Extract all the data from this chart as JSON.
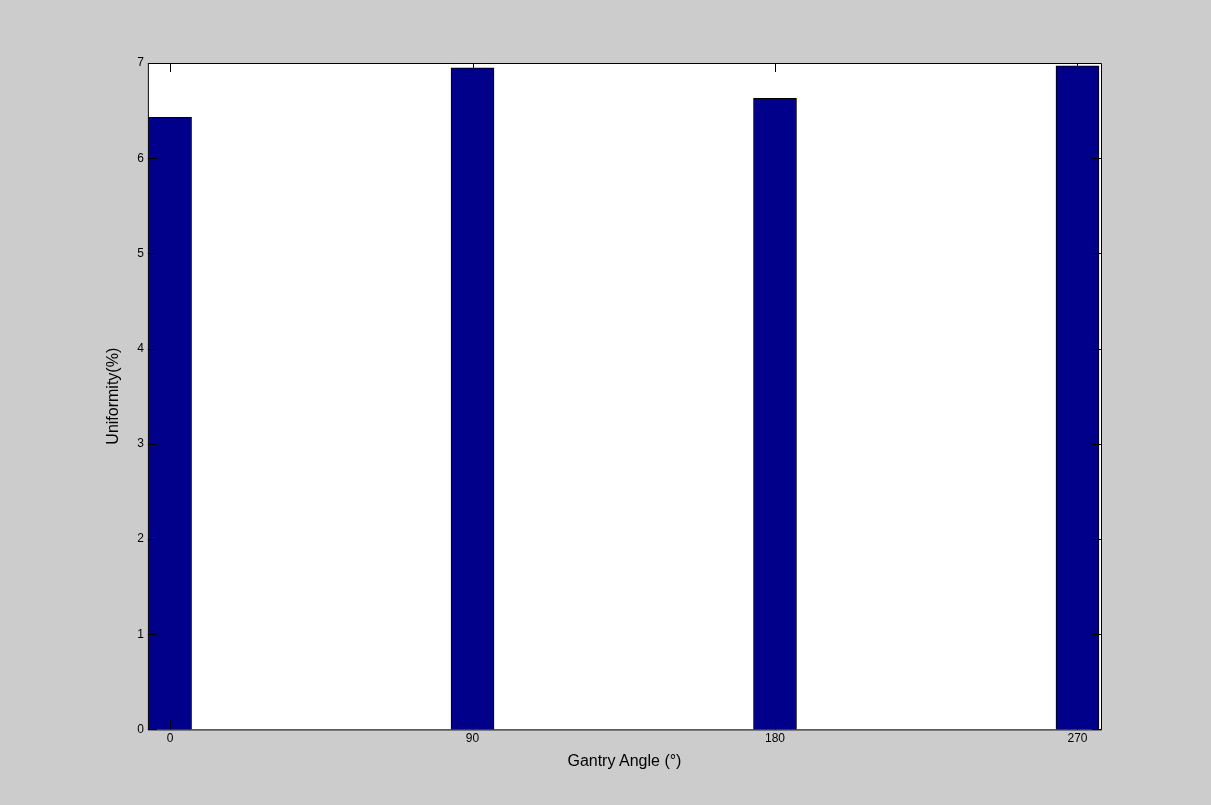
{
  "chart_data": {
    "type": "bar",
    "x": [
      0,
      90,
      180,
      270
    ],
    "values": [
      6.43,
      6.95,
      6.63,
      6.97
    ],
    "color": "#00008b",
    "xlim": [
      -6.6,
      277
    ],
    "xticks": [
      0,
      90,
      180,
      270
    ],
    "ylim": [
      0,
      7
    ],
    "yticks": [
      0,
      1,
      2,
      3,
      4,
      5,
      6,
      7
    ],
    "xlabel": "Gantry Angle (°)",
    "ylabel": "Uniformity(%)",
    "grid": false,
    "legend": false
  }
}
